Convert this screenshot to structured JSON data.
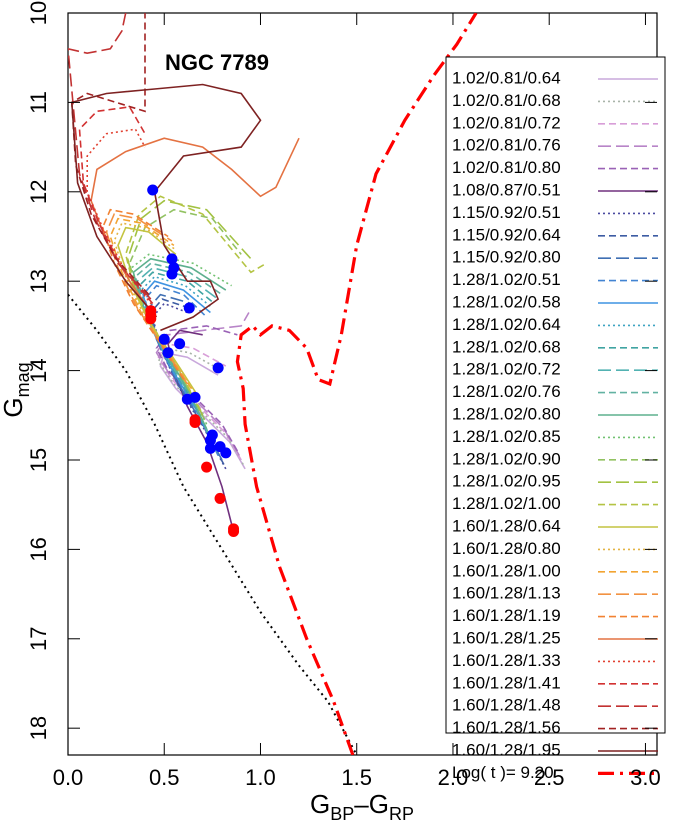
{
  "chart_data": {
    "type": "line",
    "title": "NGC 7789",
    "xlabel_parts": [
      "G",
      "BP",
      "–G",
      "RP"
    ],
    "ylabel_parts": [
      "G",
      "mag"
    ],
    "xlim": [
      0,
      3.06
    ],
    "ylim": [
      10,
      18.3
    ],
    "y_inverted": true,
    "xticks": [
      {
        "value": 0,
        "label": "0.0"
      },
      {
        "value": 0.5,
        "label": "0.5"
      },
      {
        "value": 1,
        "label": "1.0"
      },
      {
        "value": 1.5,
        "label": "1.5"
      },
      {
        "value": 2,
        "label": "2.0"
      },
      {
        "value": 2.5,
        "label": "2.5"
      },
      {
        "value": 3,
        "label": "3.0"
      }
    ],
    "yticks": [
      10,
      11,
      12,
      13,
      14,
      15,
      16,
      17,
      18
    ],
    "legend": "upper right",
    "series": [
      {
        "name": "1.02/0.81/0.64",
        "color": "#c9a8dc",
        "dash": "solid",
        "x": [
          0.92,
          0.84,
          0.7,
          0.56,
          0.48,
          0.5,
          0.62,
          0.78
        ],
        "values": [
          15.1,
          14.8,
          14.5,
          14.2,
          13.95,
          13.8,
          13.85,
          14.05
        ]
      },
      {
        "name": "1.02/0.81/0.68",
        "color": "#a9b4a9",
        "dash": "dotted",
        "x": [
          0.91,
          0.83,
          0.69,
          0.55,
          0.47,
          0.5,
          0.63,
          0.8
        ],
        "values": [
          15.05,
          14.75,
          14.45,
          14.15,
          13.9,
          13.75,
          13.8,
          14.0
        ]
      },
      {
        "name": "1.02/0.81/0.72",
        "color": "#d89ed8",
        "dash": "dashed",
        "x": [
          0.9,
          0.82,
          0.68,
          0.54,
          0.47,
          0.51,
          0.65,
          0.82
        ],
        "values": [
          15.0,
          14.7,
          14.4,
          14.1,
          13.85,
          13.7,
          13.75,
          13.95
        ]
      },
      {
        "name": "1.02/0.81/0.76",
        "color": "#b884c8",
        "dash": "longdash",
        "x": [
          0.89,
          0.81,
          0.67,
          0.53,
          0.46,
          0.52,
          0.7,
          0.9,
          0.94
        ],
        "values": [
          14.95,
          14.65,
          14.35,
          14.05,
          13.8,
          13.6,
          13.55,
          13.5,
          13.35
        ]
      },
      {
        "name": "1.02/0.81/0.80",
        "color": "#9a62b6",
        "dash": "dashed",
        "x": [
          0.88,
          0.8,
          0.66,
          0.52,
          0.46,
          0.53,
          0.72,
          0.88
        ],
        "values": [
          14.9,
          14.6,
          14.3,
          14.0,
          13.75,
          13.55,
          13.5,
          13.6
        ]
      },
      {
        "name": "1.08/0.87/0.51",
        "color": "#70307e",
        "dash": "solid",
        "x": [
          0.86,
          0.8,
          0.72,
          0.62,
          0.55,
          0.52,
          0.58,
          0.7
        ],
        "values": [
          15.8,
          15.3,
          14.8,
          14.4,
          14.0,
          13.7,
          13.55,
          13.6
        ]
      },
      {
        "name": "1.15/0.92/0.51",
        "color": "#4a4aa0",
        "dash": "dotted",
        "x": [
          0.82,
          0.72,
          0.58,
          0.48,
          0.44,
          0.5,
          0.62
        ],
        "values": [
          15.1,
          14.7,
          14.2,
          13.75,
          13.4,
          13.25,
          13.35
        ]
      },
      {
        "name": "1.15/0.92/0.64",
        "color": "#3d5ca3",
        "dash": "dashed",
        "x": [
          0.81,
          0.71,
          0.57,
          0.47,
          0.43,
          0.49,
          0.63
        ],
        "values": [
          15.05,
          14.65,
          14.15,
          13.7,
          13.35,
          13.2,
          13.3
        ]
      },
      {
        "name": "1.15/0.92/0.80",
        "color": "#3f6fb3",
        "dash": "longdash",
        "x": [
          0.8,
          0.7,
          0.56,
          0.46,
          0.42,
          0.48,
          0.64
        ],
        "values": [
          15.0,
          14.6,
          14.1,
          13.65,
          13.3,
          13.15,
          13.25
        ]
      },
      {
        "name": "1.28/1.02/0.51",
        "color": "#4284d2",
        "dash": "dashed",
        "x": [
          0.78,
          0.68,
          0.54,
          0.44,
          0.4,
          0.46,
          0.6,
          0.72
        ],
        "values": [
          14.95,
          14.5,
          14.0,
          13.55,
          13.2,
          13.05,
          13.15,
          13.4
        ]
      },
      {
        "name": "1.28/1.02/0.58",
        "color": "#3f94e2",
        "dash": "solid",
        "x": [
          0.77,
          0.67,
          0.53,
          0.43,
          0.39,
          0.45,
          0.6,
          0.74
        ],
        "values": [
          14.9,
          14.45,
          13.95,
          13.5,
          13.15,
          13.0,
          13.1,
          13.35
        ]
      },
      {
        "name": "1.28/1.02/0.64",
        "color": "#3ea4c2",
        "dash": "dotted",
        "x": [
          0.76,
          0.66,
          0.52,
          0.42,
          0.38,
          0.45,
          0.61,
          0.75
        ],
        "values": [
          14.85,
          14.4,
          13.9,
          13.45,
          13.1,
          12.95,
          13.05,
          13.3
        ]
      },
      {
        "name": "1.28/1.02/0.68",
        "color": "#40a4a2",
        "dash": "dashed",
        "x": [
          0.75,
          0.65,
          0.51,
          0.41,
          0.37,
          0.44,
          0.62,
          0.76
        ],
        "values": [
          14.8,
          14.35,
          13.85,
          13.4,
          13.05,
          12.9,
          13.0,
          13.25
        ]
      },
      {
        "name": "1.28/1.02/0.72",
        "color": "#52b2b2",
        "dash": "longdash",
        "x": [
          0.74,
          0.64,
          0.5,
          0.4,
          0.36,
          0.44,
          0.62,
          0.78
        ],
        "values": [
          14.75,
          14.3,
          13.8,
          13.35,
          13.0,
          12.85,
          12.95,
          13.2
        ]
      },
      {
        "name": "1.28/1.02/0.76",
        "color": "#62b2a2",
        "dash": "dashed",
        "x": [
          0.73,
          0.63,
          0.49,
          0.39,
          0.35,
          0.43,
          0.63,
          0.8
        ],
        "values": [
          14.7,
          14.25,
          13.75,
          13.3,
          12.95,
          12.8,
          12.9,
          13.15
        ]
      },
      {
        "name": "1.28/1.02/0.80",
        "color": "#5eb08e",
        "dash": "solid",
        "x": [
          0.72,
          0.62,
          0.48,
          0.38,
          0.34,
          0.43,
          0.64,
          0.82
        ],
        "values": [
          14.65,
          14.2,
          13.7,
          13.25,
          12.9,
          12.75,
          12.85,
          13.1
        ]
      },
      {
        "name": "1.28/1.02/0.85",
        "color": "#72c272",
        "dash": "dotted",
        "x": [
          0.72,
          0.61,
          0.47,
          0.37,
          0.33,
          0.42,
          0.65,
          0.85
        ],
        "values": [
          14.6,
          14.15,
          13.65,
          13.2,
          12.85,
          12.7,
          12.8,
          13.05
        ]
      },
      {
        "name": "1.28/1.02/0.90",
        "color": "#92c262",
        "dash": "dashed",
        "x": [
          0.71,
          0.6,
          0.46,
          0.36,
          0.32,
          0.4,
          0.55,
          0.75,
          0.9
        ],
        "values": [
          14.55,
          14.1,
          13.6,
          13.15,
          12.8,
          12.4,
          12.2,
          12.3,
          12.7
        ]
      },
      {
        "name": "1.28/1.02/0.95",
        "color": "#a2c242",
        "dash": "longdash",
        "x": [
          0.7,
          0.59,
          0.45,
          0.35,
          0.31,
          0.38,
          0.5,
          0.72,
          0.95
        ],
        "values": [
          14.5,
          14.05,
          13.55,
          13.1,
          12.75,
          12.3,
          12.1,
          12.2,
          12.75
        ]
      },
      {
        "name": "1.28/1.02/1.00",
        "color": "#b4c444",
        "dash": "dashed",
        "x": [
          0.69,
          0.58,
          0.44,
          0.34,
          0.3,
          0.37,
          0.48,
          0.7,
          0.95,
          1.03
        ],
        "values": [
          14.45,
          14.0,
          13.5,
          13.05,
          12.7,
          12.25,
          12.05,
          12.25,
          12.9,
          12.8
        ]
      },
      {
        "name": "1.60/1.28/0.64",
        "color": "#c4c440",
        "dash": "solid",
        "x": [
          0.68,
          0.56,
          0.42,
          0.32,
          0.26,
          0.3,
          0.42,
          0.56
        ],
        "values": [
          14.3,
          13.9,
          13.45,
          13.0,
          12.6,
          12.4,
          12.45,
          12.7
        ]
      },
      {
        "name": "1.60/1.28/0.80",
        "color": "#e4b442",
        "dash": "dotted",
        "x": [
          0.66,
          0.54,
          0.4,
          0.3,
          0.24,
          0.28,
          0.4,
          0.56
        ],
        "values": [
          14.25,
          13.85,
          13.4,
          12.95,
          12.55,
          12.35,
          12.4,
          12.65
        ]
      },
      {
        "name": "1.60/1.28/1.00",
        "color": "#f2a432",
        "dash": "dashed",
        "x": [
          0.64,
          0.52,
          0.38,
          0.28,
          0.22,
          0.26,
          0.38,
          0.55
        ],
        "values": [
          14.2,
          13.8,
          13.35,
          12.9,
          12.5,
          12.3,
          12.35,
          12.6
        ]
      },
      {
        "name": "1.60/1.28/1.13",
        "color": "#f29242",
        "dash": "longdash",
        "x": [
          0.62,
          0.5,
          0.36,
          0.26,
          0.2,
          0.24,
          0.36,
          0.54
        ],
        "values": [
          14.15,
          13.75,
          13.3,
          12.85,
          12.45,
          12.25,
          12.3,
          12.55
        ]
      },
      {
        "name": "1.60/1.28/1.19",
        "color": "#f28232",
        "dash": "dashed",
        "x": [
          0.6,
          0.48,
          0.34,
          0.24,
          0.18,
          0.22,
          0.34,
          0.52
        ],
        "values": [
          14.1,
          13.7,
          13.25,
          12.8,
          12.4,
          12.2,
          12.25,
          12.5
        ]
      },
      {
        "name": "1.60/1.28/1.25",
        "color": "#e47242",
        "dash": "solid",
        "x": [
          0.45,
          0.32,
          0.2,
          0.12,
          0.15,
          0.3,
          0.5,
          0.7,
          0.85,
          1.0,
          1.08,
          1.2
        ],
        "values": [
          13.4,
          13.0,
          12.55,
          12.1,
          11.75,
          11.55,
          11.4,
          11.5,
          11.75,
          12.05,
          11.95,
          11.4
        ]
      },
      {
        "name": "1.60/1.28/1.33",
        "color": "#e24232",
        "dash": "dotted",
        "x": [
          0.45,
          0.3,
          0.18,
          0.1,
          0.1,
          0.2,
          0.35,
          0.4
        ],
        "values": [
          13.3,
          12.9,
          12.4,
          12.0,
          11.6,
          11.35,
          11.3,
          11.5
        ]
      },
      {
        "name": "1.60/1.28/1.41",
        "color": "#d23232",
        "dash": "dashed",
        "x": [
          0.44,
          0.28,
          0.16,
          0.08,
          0.06,
          0.15,
          0.32,
          0.4
        ],
        "values": [
          13.25,
          12.85,
          12.35,
          11.9,
          11.3,
          11.1,
          11.05,
          11.35
        ]
      },
      {
        "name": "1.60/1.28/1.48",
        "color": "#c23232",
        "dash": "longdash",
        "x": [
          0.43,
          0.26,
          0.14,
          0.06,
          0.0,
          0.1,
          0.22,
          0.28,
          0.3
        ],
        "values": [
          13.2,
          12.8,
          12.3,
          11.8,
          10.4,
          10.45,
          10.4,
          10.2,
          10.0
        ]
      },
      {
        "name": "1.60/1.28/1.56",
        "color": "#a22222",
        "dash": "dashed",
        "x": [
          0.42,
          0.25,
          0.12,
          0.04,
          0.02,
          0.1,
          0.4,
          0.4
        ],
        "values": [
          13.15,
          12.75,
          12.25,
          11.7,
          11.0,
          10.9,
          11.1,
          10.0
        ]
      },
      {
        "name": "1.60/1.28/1.95",
        "color": "#7e2222",
        "dash": "solid",
        "x": [
          0.46,
          0.3,
          0.15,
          0.05,
          0.02,
          0.2,
          0.45,
          0.7,
          0.9,
          1.0,
          0.9,
          0.6,
          0.45,
          0.5,
          0.62,
          0.74,
          0.78,
          0.65,
          0.48
        ],
        "values": [
          13.4,
          13.0,
          12.5,
          11.9,
          11.0,
          10.9,
          10.85,
          10.8,
          10.9,
          11.2,
          11.5,
          11.6,
          12.0,
          12.6,
          13.0,
          13.0,
          13.2,
          13.4,
          13.55
        ]
      },
      {
        "name": "Log( t )= 9.20",
        "color": "#ff0000",
        "dash": "dashdot",
        "x": [
          1.48,
          1.38,
          1.24,
          1.1,
          0.98,
          0.92,
          0.91,
          0.88,
          0.9,
          0.96,
          1.0,
          1.06,
          1.15,
          1.24,
          1.3,
          1.36,
          1.42,
          1.5,
          1.6,
          1.75,
          1.9,
          2.02,
          2.12
        ],
        "values": [
          18.3,
          17.7,
          17.0,
          16.2,
          15.3,
          14.6,
          14.2,
          13.9,
          13.6,
          13.5,
          13.6,
          13.5,
          13.55,
          13.75,
          14.1,
          14.15,
          13.6,
          12.6,
          11.8,
          11.2,
          10.7,
          10.35,
          10.0
        ]
      }
    ],
    "reference_line": {
      "color": "#000000",
      "x": [
        0.0,
        0.15,
        0.3,
        0.45,
        0.6,
        0.8,
        1.0,
        1.2,
        1.35,
        1.5
      ],
      "values": [
        13.15,
        13.55,
        14.0,
        14.6,
        15.3,
        16.0,
        16.7,
        17.3,
        17.7,
        18.3
      ]
    },
    "points": [
      {
        "color": "#0000ff",
        "x": [
          0.44,
          0.54,
          0.55,
          0.54,
          0.63,
          0.5,
          0.58,
          0.52,
          0.78,
          0.62,
          0.66,
          0.75,
          0.74,
          0.74,
          0.79,
          0.82
        ],
        "values": [
          11.98,
          12.75,
          12.85,
          12.92,
          13.3,
          13.65,
          13.7,
          13.8,
          13.97,
          14.32,
          14.3,
          14.72,
          14.78,
          14.87,
          14.85,
          14.92
        ]
      },
      {
        "color": "#ff0000",
        "x": [
          0.43,
          0.43,
          0.43,
          0.66,
          0.66,
          0.72,
          0.79,
          0.86,
          0.86
        ],
        "values": [
          13.33,
          13.38,
          13.42,
          14.55,
          14.58,
          15.08,
          15.43,
          15.77,
          15.8
        ]
      }
    ]
  }
}
